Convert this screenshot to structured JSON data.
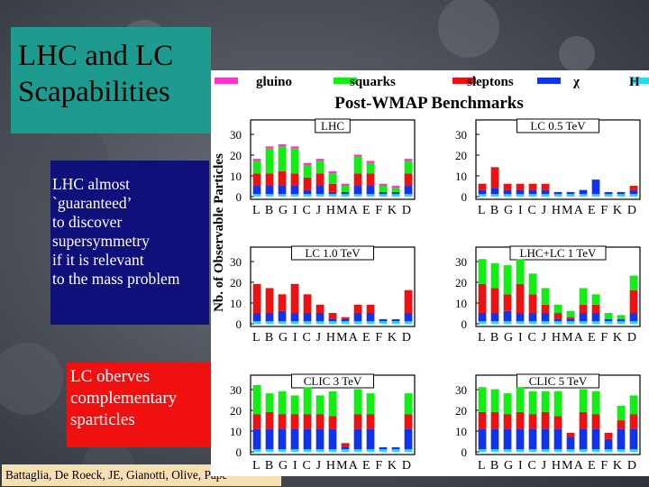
{
  "slide": {
    "title_lines": [
      "LHC and LC",
      "Scapabilities"
    ],
    "lhc_note_lines": [
      "LHC almost",
      "`guaranteed’",
      "to discover",
      "supersymmetry",
      "if it is relevant",
      "to the mass problem"
    ],
    "lc_note_lines": [
      "LC oberves",
      "complementary",
      "sparticles"
    ],
    "credit": "Battaglia, De Roeck, JE, Gianotti, Olive, Pape"
  },
  "chart_data": [
    {
      "type": "bar",
      "title": "LHC",
      "categories": [
        "L",
        "B",
        "G",
        "I",
        "C",
        "J",
        "H",
        "M",
        "A",
        "E",
        "F",
        "K",
        "D"
      ],
      "ylim": [
        0,
        30
      ],
      "series": [
        {
          "name": "χ",
          "values": [
            4,
            4,
            4,
            4,
            2,
            4,
            1,
            1,
            4,
            4,
            1,
            1,
            4
          ]
        },
        {
          "name": "sleptons",
          "values": [
            6,
            6,
            7,
            6,
            6,
            6,
            4,
            0,
            6,
            6,
            0,
            0,
            6
          ]
        },
        {
          "name": "squarks",
          "values": [
            6,
            12,
            12,
            12,
            6,
            6,
            5,
            3,
            8,
            5,
            3,
            2,
            6
          ]
        },
        {
          "name": "gluino",
          "values": [
            1,
            1,
            1,
            1,
            1,
            1,
            1,
            1,
            1,
            1,
            1,
            1,
            1
          ]
        }
      ],
      "series_colors": [
        "#3399ff",
        "#ee1111",
        "#11ee11",
        "#ff33cc"
      ]
    },
    {
      "type": "bar",
      "title": "LC 0.5 TeV",
      "categories": [
        "L",
        "B",
        "G",
        "I",
        "C",
        "J",
        "H",
        "M",
        "A",
        "E",
        "F",
        "K",
        "D"
      ],
      "ylim": [
        0,
        30
      ],
      "series": [
        {
          "name": "χ",
          "values": [
            2,
            3,
            2,
            2,
            2,
            2,
            1,
            1,
            2,
            7,
            1,
            1,
            2
          ]
        },
        {
          "name": "sleptons",
          "values": [
            3,
            10,
            3,
            3,
            3,
            3,
            0,
            0,
            0,
            0,
            0,
            0,
            2
          ]
        }
      ]
    },
    {
      "type": "bar",
      "title": "LC 1.0 TeV",
      "categories": [
        "L",
        "B",
        "G",
        "I",
        "C",
        "J",
        "H",
        "M",
        "A",
        "E",
        "F",
        "K",
        "D"
      ],
      "ylim": [
        0,
        30
      ],
      "series": [
        {
          "name": "χ",
          "values": [
            4,
            4,
            5,
            4,
            4,
            4,
            1,
            1,
            4,
            4,
            1,
            1,
            4
          ]
        },
        {
          "name": "sleptons",
          "values": [
            14,
            12,
            8,
            14,
            9,
            4,
            3,
            1,
            4,
            4,
            0,
            0,
            11
          ]
        }
      ]
    },
    {
      "type": "bar",
      "title": "LHC+LC 1 TeV",
      "categories": [
        "L",
        "B",
        "G",
        "I",
        "C",
        "J",
        "H",
        "M",
        "A",
        "E",
        "F",
        "K",
        "D"
      ],
      "ylim": [
        0,
        30
      ],
      "series": [
        {
          "name": "χ",
          "values": [
            4,
            4,
            5,
            4,
            4,
            4,
            1,
            1,
            4,
            4,
            1,
            1,
            4
          ]
        },
        {
          "name": "sleptons",
          "values": [
            14,
            12,
            8,
            14,
            9,
            4,
            3,
            1,
            4,
            4,
            0,
            0,
            11
          ]
        },
        {
          "name": "squarks",
          "values": [
            12,
            12,
            14,
            12,
            10,
            8,
            4,
            3,
            8,
            5,
            3,
            2,
            7
          ]
        }
      ]
    },
    {
      "type": "bar",
      "title": "CLIC 3 TeV",
      "categories": [
        "L",
        "B",
        "G",
        "I",
        "C",
        "J",
        "H",
        "M",
        "A",
        "E",
        "F",
        "K",
        "D"
      ],
      "ylim": [
        0,
        30
      ],
      "series": [
        {
          "name": "χ",
          "values": [
            10,
            10,
            10,
            10,
            10,
            10,
            10,
            1,
            10,
            10,
            1,
            1,
            10
          ]
        },
        {
          "name": "sleptons",
          "values": [
            7,
            8,
            7,
            7,
            7,
            7,
            6,
            2,
            7,
            7,
            0,
            0,
            7
          ]
        },
        {
          "name": "squarks",
          "values": [
            14,
            9,
            11,
            9,
            13,
            9,
            12,
            0,
            12,
            10,
            0,
            0,
            10
          ]
        }
      ]
    },
    {
      "type": "bar",
      "title": "CLIC 5 TeV",
      "categories": [
        "L",
        "B",
        "G",
        "I",
        "C",
        "J",
        "H",
        "M",
        "A",
        "E",
        "F",
        "K",
        "D"
      ],
      "ylim": [
        0,
        30
      ],
      "series": [
        {
          "name": "χ",
          "values": [
            10,
            10,
            10,
            10,
            10,
            10,
            10,
            6,
            10,
            10,
            5,
            10,
            10
          ]
        },
        {
          "name": "sleptons",
          "values": [
            8,
            8,
            7,
            8,
            7,
            8,
            6,
            2,
            8,
            7,
            3,
            4,
            7
          ]
        },
        {
          "name": "squarks",
          "values": [
            12,
            11,
            10,
            12,
            11,
            10,
            12,
            0,
            11,
            11,
            0,
            7,
            9
          ]
        }
      ]
    }
  ],
  "chart_labels": {
    "heading": "Post-WMAP Benchmarks",
    "y_axis_label": "Nb. of Observable Particles",
    "legend": [
      {
        "label": "gluino",
        "color": "#ff33cc"
      },
      {
        "label": "squarks",
        "color": "#11ee11"
      },
      {
        "label": "sleptons",
        "color": "#ee1111"
      },
      {
        "label": "χ",
        "color": "#1133ee"
      },
      {
        "label": "H",
        "color": "#22ddee"
      }
    ],
    "y_ticks": [
      "0",
      "10",
      "20",
      "30"
    ],
    "x_categories_line": "L B G I C J HMA E F K D"
  }
}
